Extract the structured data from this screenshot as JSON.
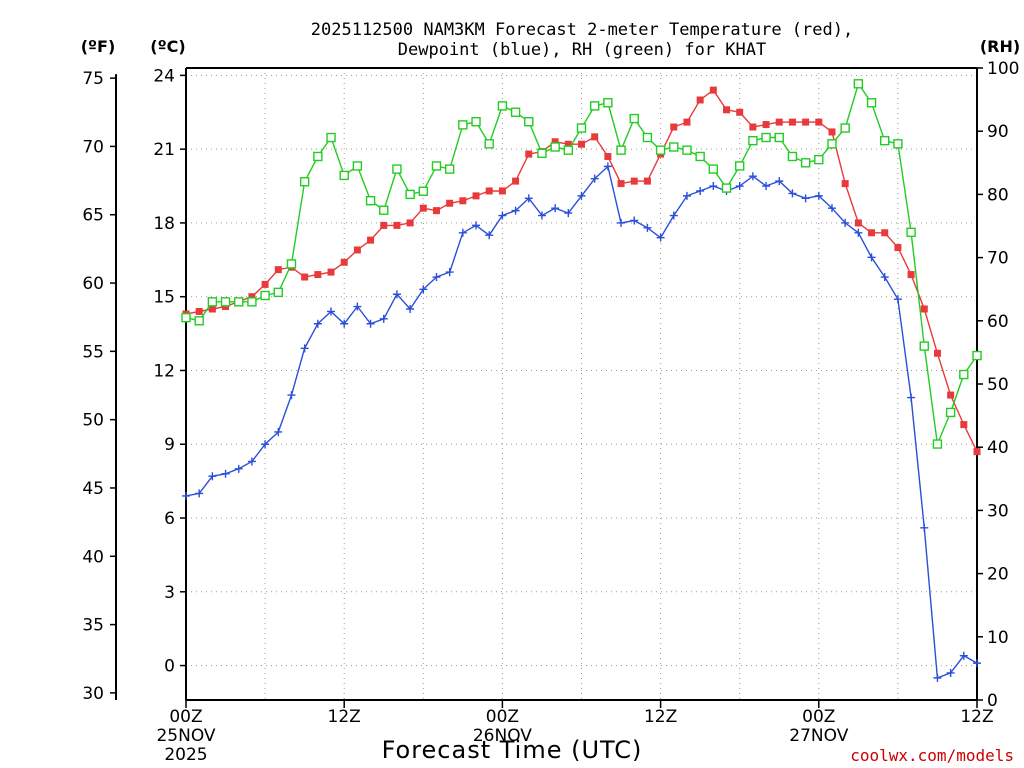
{
  "chart_data": {
    "type": "line",
    "title_line1": "2025112500 NAM3KM Forecast 2-meter Temperature (red),",
    "title_line2": "Dewpoint (blue), RH (green) for KHAT",
    "xlabel": "Forecast Time (UTC)",
    "credit": "coolwx.com/models",
    "units": {
      "fahrenheit": "(ºF)",
      "celsius": "(ºC)",
      "rh": "(RH)"
    },
    "x_range_hours": [
      0,
      60
    ],
    "x_ticks": [
      {
        "hour": 0,
        "label": "00Z",
        "date": "25NOV",
        "year": "2025"
      },
      {
        "hour": 12,
        "label": "12Z",
        "date": "",
        "year": ""
      },
      {
        "hour": 24,
        "label": "00Z",
        "date": "26NOV",
        "year": ""
      },
      {
        "hour": 36,
        "label": "12Z",
        "date": "",
        "year": ""
      },
      {
        "hour": 48,
        "label": "00Z",
        "date": "27NOV",
        "year": ""
      },
      {
        "hour": 60,
        "label": "12Z",
        "date": "",
        "year": ""
      }
    ],
    "celsius_axis": {
      "range": [
        -1.4,
        24.3
      ],
      "ticks": [
        0,
        3,
        6,
        9,
        12,
        15,
        18,
        21,
        24
      ]
    },
    "fahrenheit_ticks": [
      30,
      35,
      40,
      45,
      50,
      55,
      60,
      65,
      70,
      75
    ],
    "rh_axis": {
      "range": [
        0,
        100
      ],
      "ticks": [
        0,
        10,
        20,
        30,
        40,
        50,
        60,
        70,
        80,
        90,
        100
      ]
    },
    "hours": [
      0,
      1,
      2,
      3,
      4,
      5,
      6,
      7,
      8,
      9,
      10,
      11,
      12,
      13,
      14,
      15,
      16,
      17,
      18,
      19,
      20,
      21,
      22,
      23,
      24,
      25,
      26,
      27,
      28,
      29,
      30,
      31,
      32,
      33,
      34,
      35,
      36,
      37,
      38,
      39,
      40,
      41,
      42,
      43,
      44,
      45,
      46,
      47,
      48,
      49,
      50,
      51,
      52,
      53,
      54,
      55,
      56,
      57,
      58,
      59,
      60
    ],
    "series": [
      {
        "name": "Temperature",
        "unit": "C",
        "color": "#e8393b",
        "marker": "filled-square",
        "values": [
          14.3,
          14.4,
          14.5,
          14.6,
          14.8,
          15.0,
          15.5,
          16.1,
          16.2,
          15.8,
          15.9,
          16.0,
          16.4,
          16.9,
          17.3,
          17.9,
          17.9,
          18.0,
          18.6,
          18.5,
          18.8,
          18.9,
          19.1,
          19.3,
          19.3,
          19.7,
          20.8,
          20.9,
          21.3,
          21.2,
          21.2,
          21.5,
          20.7,
          19.6,
          19.7,
          19.7,
          20.8,
          21.9,
          22.1,
          23.0,
          23.4,
          22.6,
          22.5,
          21.9,
          22.0,
          22.1,
          22.1,
          22.1,
          22.1,
          21.7,
          19.6,
          18.0,
          17.6,
          17.6,
          17.0,
          15.9,
          14.5,
          12.7,
          11.0,
          9.8,
          8.7
        ]
      },
      {
        "name": "Dewpoint",
        "unit": "C",
        "color": "#2a4fd9",
        "marker": "plus",
        "values": [
          6.9,
          7.0,
          7.7,
          7.8,
          8.0,
          8.3,
          9.0,
          9.5,
          11.0,
          12.9,
          13.9,
          14.4,
          13.9,
          14.6,
          13.9,
          14.1,
          15.1,
          14.5,
          15.3,
          15.8,
          16.0,
          17.6,
          17.9,
          17.5,
          18.3,
          18.5,
          19.0,
          18.3,
          18.6,
          18.4,
          19.1,
          19.8,
          20.3,
          18.0,
          18.1,
          17.8,
          17.4,
          18.3,
          19.1,
          19.3,
          19.5,
          19.3,
          19.5,
          19.9,
          19.5,
          19.7,
          19.2,
          19.0,
          19.1,
          18.6,
          18.0,
          17.6,
          16.6,
          15.8,
          14.9,
          10.9,
          5.6,
          -0.5,
          -0.3,
          0.4,
          0.1
        ]
      },
      {
        "name": "RH",
        "unit": "%",
        "color": "#22cc22",
        "marker": "open-square",
        "values": [
          60.5,
          60.0,
          63.0,
          63.0,
          63.0,
          63.0,
          64.0,
          64.5,
          69.0,
          82.0,
          86.0,
          89.0,
          83.0,
          84.5,
          79.0,
          77.5,
          84.0,
          80.0,
          80.5,
          84.5,
          84.0,
          91.0,
          91.5,
          88.0,
          94.0,
          93.0,
          91.5,
          86.5,
          87.5,
          87.0,
          90.5,
          94.0,
          94.5,
          87.0,
          92.0,
          89.0,
          87.0,
          87.5,
          87.0,
          86.0,
          84.0,
          81.0,
          84.5,
          88.5,
          89.0,
          89.0,
          86.0,
          85.0,
          85.5,
          88.0,
          90.5,
          97.5,
          94.5,
          88.5,
          88.0,
          74.0,
          56.0,
          40.5,
          45.5,
          51.5,
          54.5
        ]
      }
    ]
  }
}
